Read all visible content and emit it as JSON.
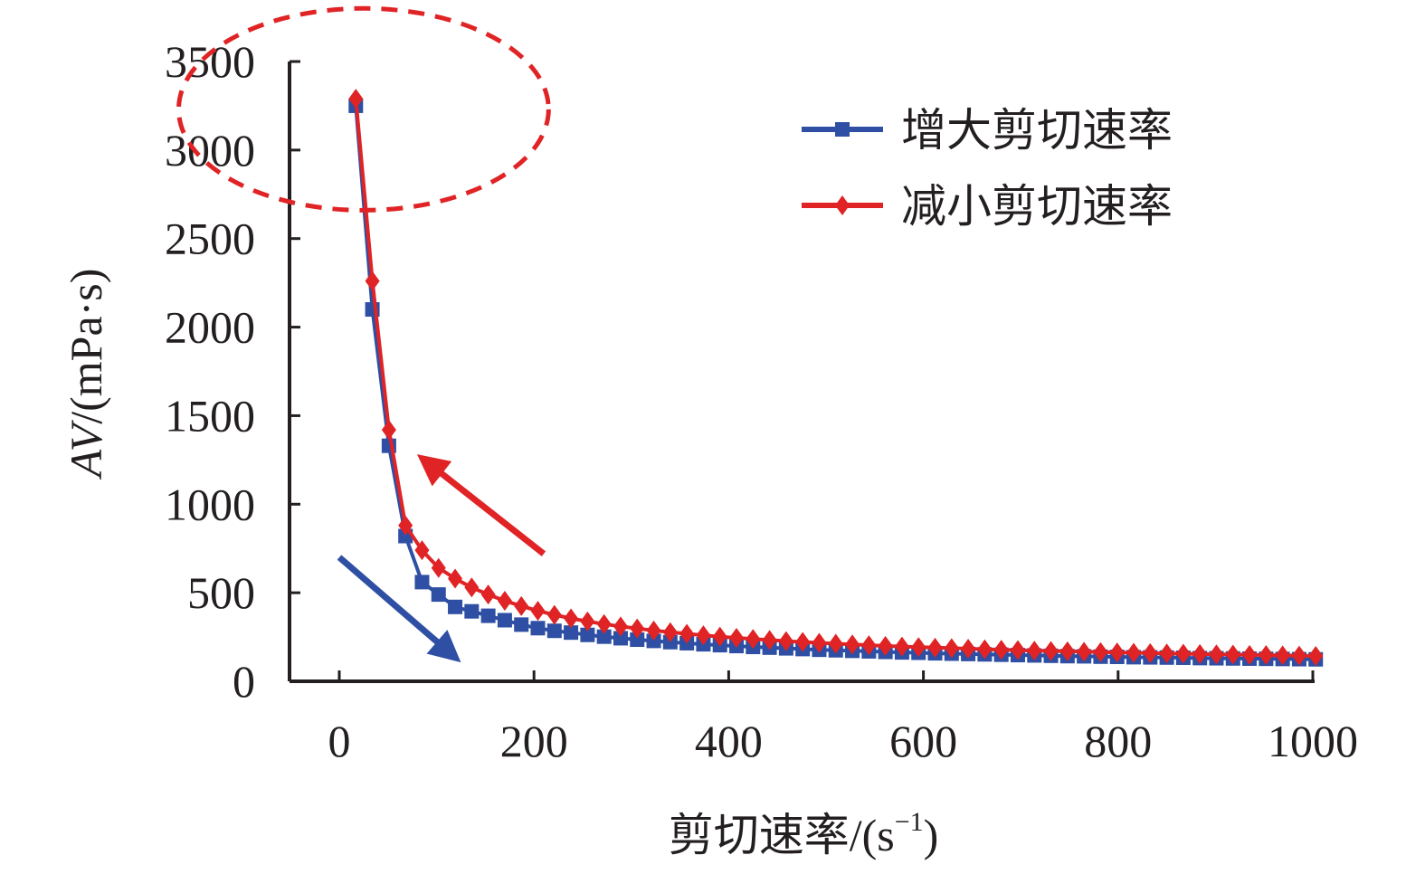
{
  "chart_data": {
    "type": "line",
    "title": "",
    "xlabel": "剪切速率/(s",
    "xlabel_sup": "−1",
    "xlabel_close": ")",
    "ylabel_italic": "AV",
    "ylabel_rest": "/(mPa·s)",
    "xlim": [
      0,
      1000
    ],
    "ylim": [
      0,
      3500
    ],
    "xticks": [
      0,
      200,
      400,
      600,
      800,
      1000
    ],
    "yticks": [
      0,
      500,
      1000,
      1500,
      2000,
      2500,
      3000,
      3500
    ],
    "legend_position": "top-right",
    "series": [
      {
        "name": "增大剪切速率",
        "color": "#2e4fa3",
        "marker": "square",
        "x": [
          17,
          34,
          51,
          68,
          85,
          102,
          119,
          136,
          153,
          170,
          187,
          204,
          221,
          238,
          255,
          272,
          289,
          306,
          323,
          340,
          357,
          374,
          391,
          408,
          425,
          442,
          459,
          476,
          493,
          510,
          527,
          544,
          561,
          578,
          595,
          612,
          629,
          646,
          663,
          680,
          697,
          714,
          731,
          748,
          765,
          782,
          799,
          816,
          833,
          850,
          867,
          884,
          901,
          918,
          935,
          952,
          969,
          986,
          1003
        ],
        "y": [
          3250,
          2100,
          1330,
          820,
          560,
          490,
          420,
          395,
          370,
          345,
          320,
          300,
          285,
          275,
          262,
          252,
          243,
          235,
          228,
          221,
          215,
          209,
          204,
          199,
          194,
          190,
          186,
          182,
          178,
          175,
          172,
          169,
          166,
          163,
          161,
          158,
          156,
          154,
          152,
          150,
          148,
          146,
          144,
          142,
          141,
          139,
          138,
          136,
          135,
          134,
          133,
          131,
          130,
          129,
          128,
          127,
          126,
          125,
          124
        ]
      },
      {
        "name": "减小剪切速率",
        "color": "#e02325",
        "marker": "diamond",
        "x": [
          17,
          34,
          51,
          68,
          85,
          102,
          119,
          136,
          153,
          170,
          187,
          204,
          221,
          238,
          255,
          272,
          289,
          306,
          323,
          340,
          357,
          374,
          391,
          408,
          425,
          442,
          459,
          476,
          493,
          510,
          527,
          544,
          561,
          578,
          595,
          612,
          629,
          646,
          663,
          680,
          697,
          714,
          731,
          748,
          765,
          782,
          799,
          816,
          833,
          850,
          867,
          884,
          901,
          918,
          935,
          952,
          969,
          986,
          1003
        ],
        "y": [
          3290,
          2260,
          1420,
          880,
          740,
          640,
          580,
          530,
          490,
          455,
          425,
          398,
          375,
          355,
          338,
          323,
          310,
          298,
          287,
          277,
          268,
          260,
          252,
          245,
          239,
          233,
          227,
          222,
          217,
          212,
          208,
          204,
          200,
          196,
          193,
          190,
          187,
          184,
          181,
          178,
          176,
          173,
          171,
          169,
          167,
          165,
          163,
          161,
          159,
          157,
          156,
          154,
          152,
          151,
          149,
          148,
          146,
          145,
          143
        ]
      }
    ],
    "annotations": [
      {
        "type": "dashed-ellipse",
        "color": "#e02325",
        "center": [
          25,
          3230
        ],
        "radii": [
          190,
          570
        ]
      },
      {
        "type": "arrow",
        "color": "#2e4fa3",
        "from": [
          0,
          700
        ],
        "to": [
          120,
          130
        ]
      },
      {
        "type": "arrow",
        "color": "#e02325",
        "from": [
          210,
          720
        ],
        "to": [
          85,
          1260
        ]
      }
    ]
  }
}
